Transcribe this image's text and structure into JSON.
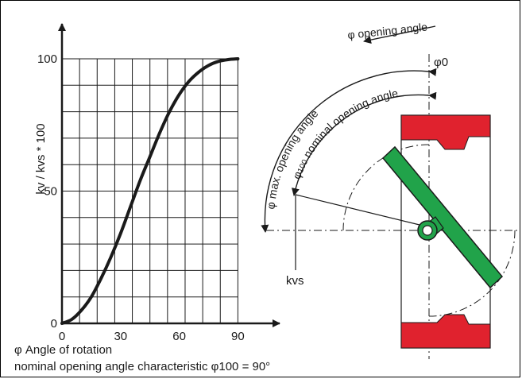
{
  "chart_data": {
    "type": "line",
    "ylabel": "kv / kvs * 100",
    "xlabel": "φ Angle of rotation",
    "caption": "nominal opening angle characteristic φ100 = 90°",
    "x_ticks": [
      "0",
      "30",
      "60",
      "90"
    ],
    "y_ticks": [
      "0",
      "50",
      "100"
    ],
    "xlim": [
      0,
      100
    ],
    "ylim": [
      0,
      110
    ],
    "grid": true,
    "series": [
      {
        "x": [
          0,
          5,
          10,
          15,
          20,
          25,
          30,
          35,
          40,
          45,
          50,
          55,
          60,
          65,
          70,
          75,
          80,
          85,
          90
        ],
        "y": [
          0,
          1.5,
          5,
          10,
          17,
          25,
          34,
          44,
          54,
          63,
          72,
          80,
          86.5,
          91.5,
          95,
          97.5,
          99,
          99.7,
          100
        ]
      }
    ]
  },
  "diagram": {
    "phi_opening_angle": "φ opening angle",
    "phi_zero": "φ0",
    "phi_max_opening_angle": "φ max. opening angle",
    "phi_sub": "100",
    "phi_nominal_opening_angle": " nominal opening angle",
    "phi_symbol": "φ",
    "kvs": "kvs"
  },
  "colors": {
    "flap": "#21a34a",
    "seat": "#e0222e",
    "stroke": "#1a1a1a"
  }
}
